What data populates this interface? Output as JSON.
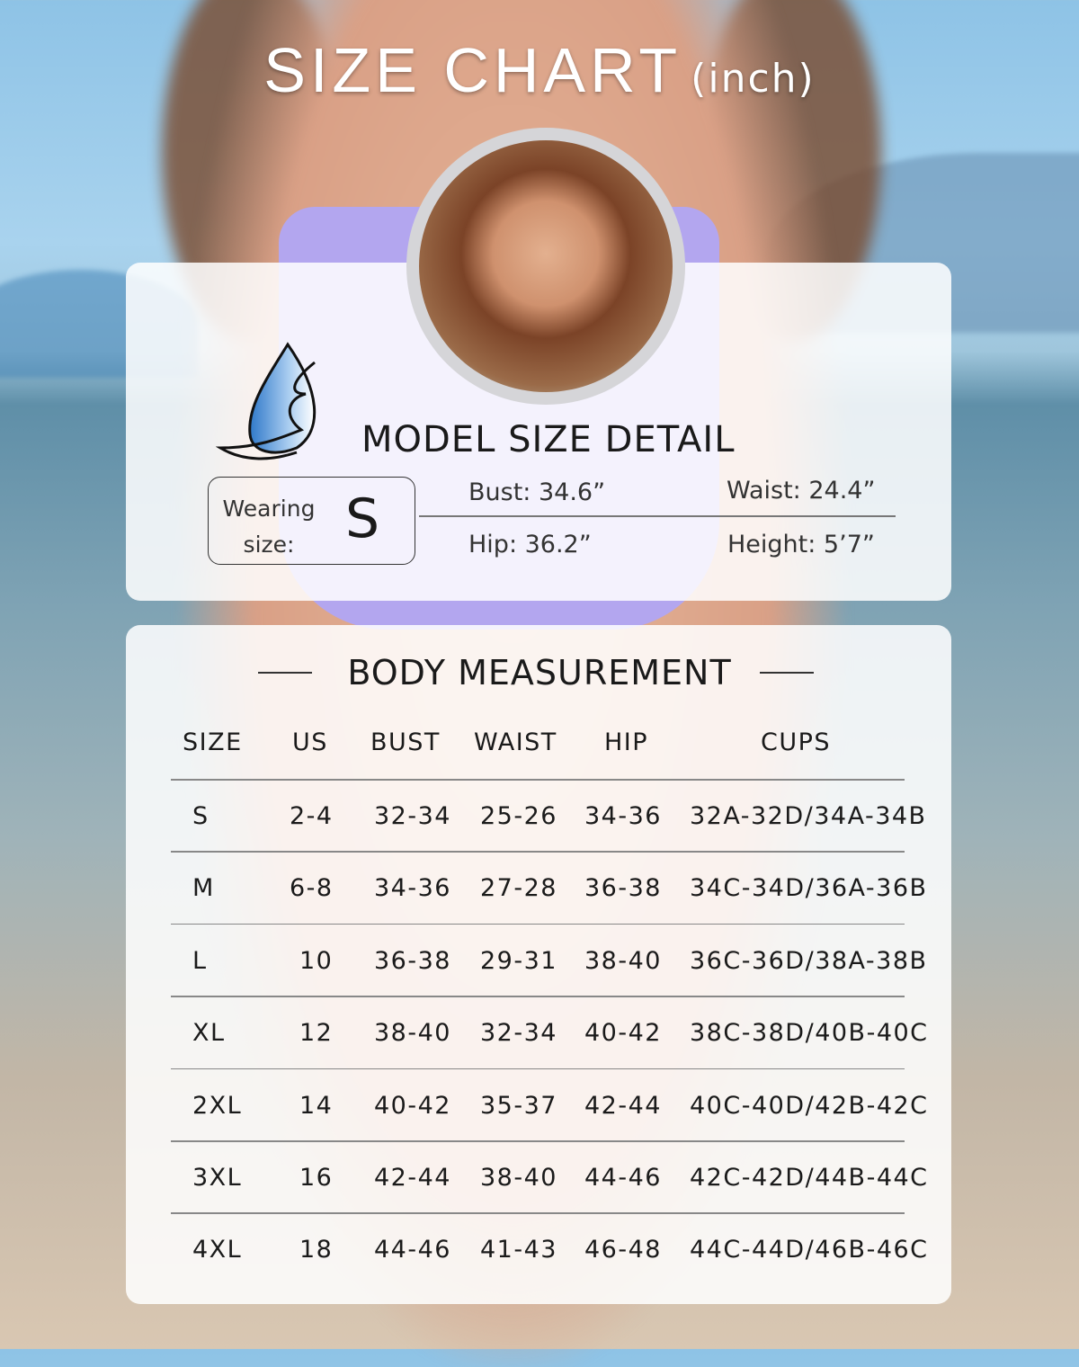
{
  "title": {
    "main": "SIZE CHART",
    "unit": "(inch)"
  },
  "model": {
    "heading": "MODEL SIZE DETAIL",
    "wearing_label": "Wearing size:",
    "wearing_size": "S",
    "bust": "Bust: 34.6”",
    "waist": "Waist:  24.4”",
    "hip": "Hip:  36.2”",
    "height": "Height: 5’7”"
  },
  "body": {
    "heading": "BODY MEASUREMENT",
    "columns": [
      "SIZE",
      "US",
      "BUST",
      "WAIST",
      "HIP",
      "CUPS"
    ],
    "rows": [
      [
        "S",
        "2-4",
        "32-34",
        "25-26",
        "34-36",
        "32A-32D/34A-34B"
      ],
      [
        "M",
        "6-8",
        "34-36",
        "27-28",
        "36-38",
        "34C-34D/36A-36B"
      ],
      [
        "L",
        "10",
        "36-38",
        "29-31",
        "38-40",
        "36C-36D/38A-38B"
      ],
      [
        "XL",
        "12",
        "38-40",
        "32-34",
        "40-42",
        "38C-38D/40B-40C"
      ],
      [
        "2XL",
        "14",
        "40-42",
        "35-37",
        "42-44",
        "40C-40D/42B-42C"
      ],
      [
        "3XL",
        "16",
        "42-44",
        "38-40",
        "44-46",
        "42C-42D/44B-44C"
      ],
      [
        "4XL",
        "18",
        "44-46",
        "41-43",
        "46-48",
        "44C-44D/46B-46C"
      ]
    ]
  },
  "colors": {
    "swimsuit": "#b3a6ef",
    "logo_blue": "#4a90d9"
  }
}
